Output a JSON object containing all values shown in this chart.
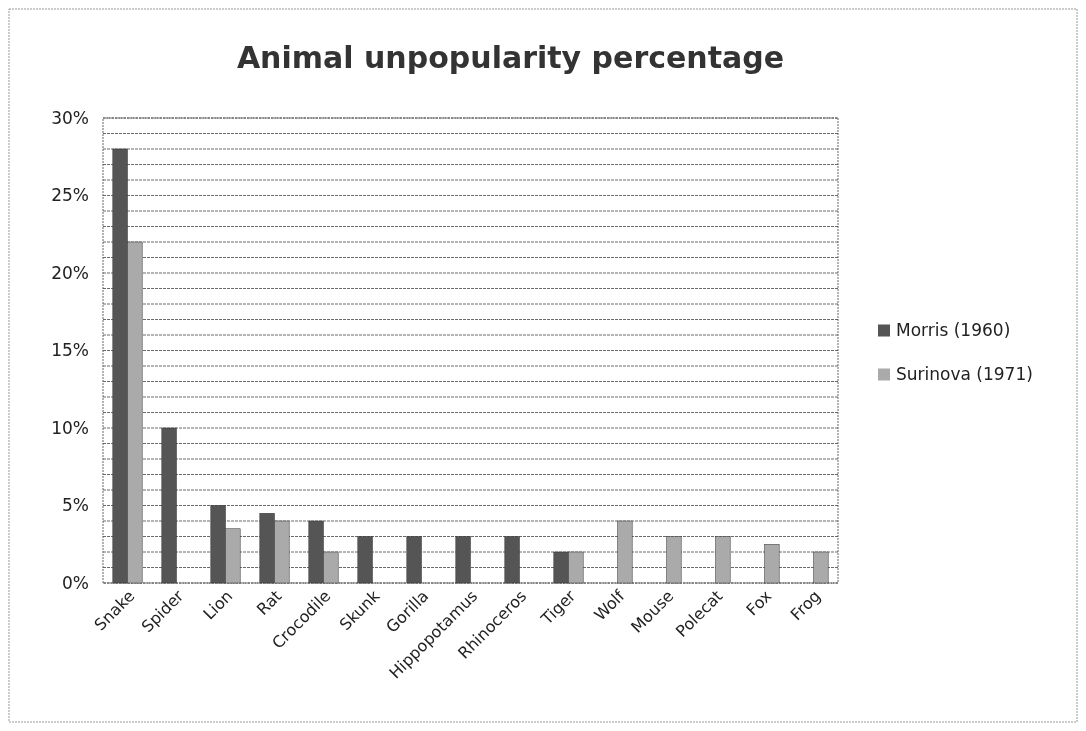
{
  "chart_data": {
    "type": "bar",
    "title": "Animal unpopularity percentage",
    "categories": [
      "Snake",
      "Spider",
      "Lion",
      "Rat",
      "Crocodile",
      "Skunk",
      "Gorilla",
      "Hippopotamus",
      "Rhinoceros",
      "Tiger",
      "Wolf",
      "Mouse",
      "Polecat",
      "Fox",
      "Frog"
    ],
    "series": [
      {
        "name": "Morris (1960)",
        "color": "#555555",
        "values": [
          28,
          10,
          5,
          4.5,
          4,
          3,
          3,
          3,
          3,
          2,
          null,
          null,
          null,
          null,
          null
        ]
      },
      {
        "name": "Surinova (1971)",
        "color": "#aaaaaa",
        "values": [
          22,
          null,
          3.5,
          4,
          2,
          null,
          null,
          null,
          null,
          2,
          4,
          3,
          3,
          2.5,
          2
        ]
      }
    ],
    "ylim": [
      0,
      30
    ],
    "yticks": [
      {
        "value": 0,
        "label": "0%"
      },
      {
        "value": 1,
        "label": null
      },
      {
        "value": 2,
        "label": null
      },
      {
        "value": 3,
        "label": null
      },
      {
        "value": 4,
        "label": null
      },
      {
        "value": 5,
        "label": "5%"
      },
      {
        "value": 6,
        "label": null
      },
      {
        "value": 7,
        "label": null
      },
      {
        "value": 8,
        "label": null
      },
      {
        "value": 9,
        "label": null
      },
      {
        "value": 10,
        "label": "10%"
      },
      {
        "value": 11,
        "label": null
      },
      {
        "value": 12,
        "label": null
      },
      {
        "value": 13,
        "label": null
      },
      {
        "value": 14,
        "label": null
      },
      {
        "value": 15,
        "label": "15%"
      },
      {
        "value": 16,
        "label": null
      },
      {
        "value": 17,
        "label": null
      },
      {
        "value": 18,
        "label": null
      },
      {
        "value": 19,
        "label": null
      },
      {
        "value": 20,
        "label": "20%"
      },
      {
        "value": 21,
        "label": null
      },
      {
        "value": 22,
        "label": null
      },
      {
        "value": 23,
        "label": null
      },
      {
        "value": 24,
        "label": null
      },
      {
        "value": 25,
        "label": "25%"
      },
      {
        "value": 26,
        "label": null
      },
      {
        "value": 27,
        "label": null
      },
      {
        "value": 28,
        "label": null
      },
      {
        "value": 29,
        "label": null
      },
      {
        "value": 30,
        "label": "30%"
      }
    ],
    "grid": "y",
    "legend": "right"
  }
}
